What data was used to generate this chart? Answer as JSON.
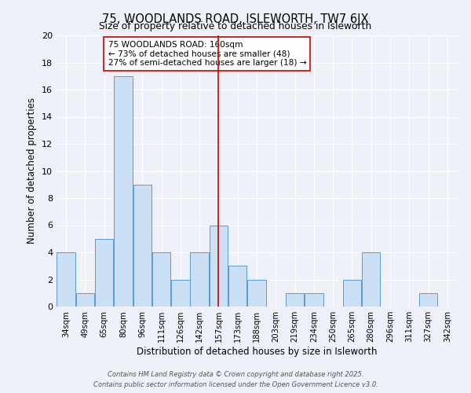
{
  "title": "75, WOODLANDS ROAD, ISLEWORTH, TW7 6JX",
  "subtitle": "Size of property relative to detached houses in Isleworth",
  "xlabel": "Distribution of detached houses by size in Isleworth",
  "ylabel": "Number of detached properties",
  "categories": [
    "34sqm",
    "49sqm",
    "65sqm",
    "80sqm",
    "96sqm",
    "111sqm",
    "126sqm",
    "142sqm",
    "157sqm",
    "173sqm",
    "188sqm",
    "203sqm",
    "219sqm",
    "234sqm",
    "250sqm",
    "265sqm",
    "280sqm",
    "296sqm",
    "311sqm",
    "327sqm",
    "342sqm"
  ],
  "values": [
    4,
    1,
    5,
    17,
    9,
    4,
    2,
    4,
    6,
    3,
    2,
    0,
    1,
    1,
    0,
    2,
    4,
    0,
    0,
    1,
    0
  ],
  "bar_color": "#cce0f5",
  "bar_edgecolor": "#5b9bd5",
  "bg_color": "#eef2f8",
  "grid_color": "#ffffff",
  "ref_line_index": 8,
  "ref_line_color": "#cc0000",
  "annotation_text": "75 WOODLANDS ROAD: 160sqm\n← 73% of detached houses are smaller (48)\n27% of semi-detached houses are larger (18) →",
  "annotation_box_edgecolor": "#cc0000",
  "annotation_box_facecolor": "#ffffff",
  "ylim": [
    0,
    20
  ],
  "yticks": [
    0,
    2,
    4,
    6,
    8,
    10,
    12,
    14,
    16,
    18,
    20
  ],
  "footer_line1": "Contains HM Land Registry data © Crown copyright and database right 2025.",
  "footer_line2": "Contains public sector information licensed under the Open Government Licence v3.0."
}
